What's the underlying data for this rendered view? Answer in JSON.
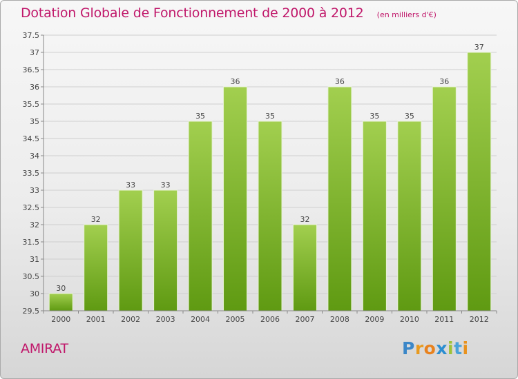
{
  "chart_title": "Dotation Globale de Fonctionnement de 2000 à 2012",
  "chart_subtitle": "(en milliers d'€)",
  "commune": "AMIRAT",
  "brand": {
    "letters": [
      "P",
      "r",
      "o",
      "x",
      "i",
      "t",
      "i"
    ],
    "colors": [
      "#3b87c8",
      "#e89a1f",
      "#e8821e",
      "#2c8ed1",
      "#9fc238",
      "#4aa3d9",
      "#e8921e"
    ]
  },
  "colors": {
    "accent": "#c0176a",
    "bar_top": "#a2cf4f",
    "bar_bottom": "#5f9a12",
    "grid": "#cfcfcf"
  },
  "chart_data": {
    "type": "bar",
    "title": "Dotation Globale de Fonctionnement de 2000 à 2012",
    "subtitle": "(en milliers d'€)",
    "categories": [
      "2000",
      "2001",
      "2002",
      "2003",
      "2004",
      "2005",
      "2006",
      "2007",
      "2008",
      "2009",
      "2010",
      "2011",
      "2012"
    ],
    "values": [
      30,
      32,
      33,
      33,
      35,
      36,
      35,
      32,
      36,
      35,
      35,
      36,
      37
    ],
    "data_labels": [
      "30",
      "32",
      "33",
      "33",
      "35",
      "36",
      "35",
      "32",
      "36",
      "35",
      "35",
      "36",
      "37"
    ],
    "ylim": [
      29.5,
      37.5
    ],
    "yticks": [
      "29.5",
      "30",
      "30.5",
      "31",
      "31.5",
      "32",
      "32.5",
      "33",
      "33.5",
      "34",
      "34.5",
      "35",
      "35.5",
      "36",
      "36.5",
      "37",
      "37.5"
    ],
    "xlabel": "",
    "ylabel": "",
    "grid": true,
    "legend": "none"
  }
}
